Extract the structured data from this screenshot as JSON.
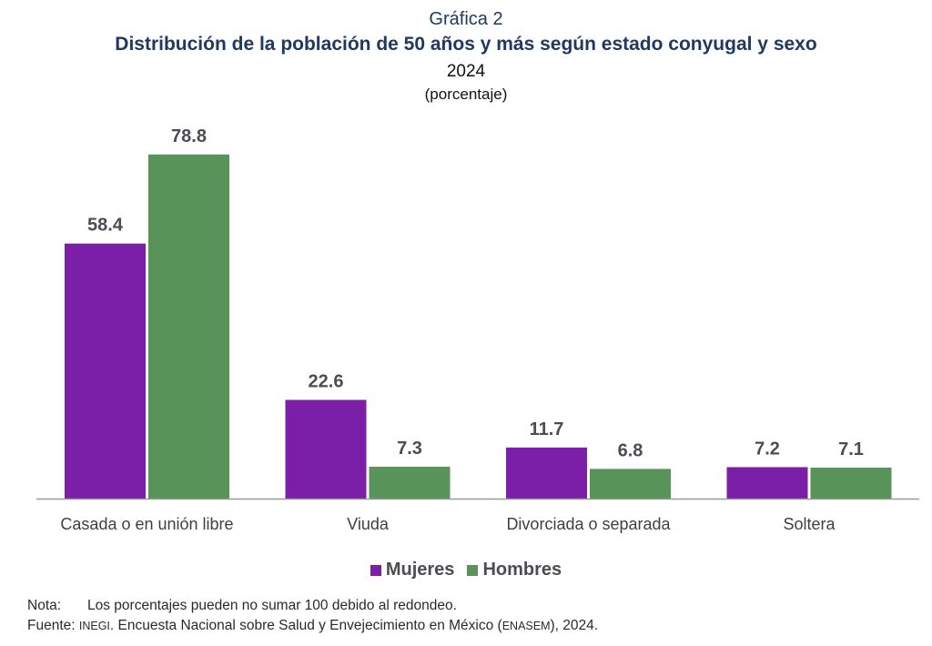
{
  "header": {
    "kicker": "Gráfica 2",
    "title": "Distribución de la población de 50 años y más según estado conyugal y sexo",
    "year": "2024",
    "unit": "(porcentaje)"
  },
  "chart_data": {
    "type": "bar",
    "title": "Distribución de la población de 50 años y más según estado conyugal y sexo",
    "subtitle": "2024 (porcentaje)",
    "xlabel": "",
    "ylabel": "",
    "categories": [
      "Casada o en unión libre",
      "Viuda",
      "Divorciada o separada",
      "Soltera"
    ],
    "series": [
      {
        "name": "Mujeres",
        "color": "#7b1fa8",
        "values": [
          58.4,
          22.6,
          11.7,
          7.2
        ],
        "labels": [
          "58.4",
          "22.6",
          "11.7",
          "7.2"
        ]
      },
      {
        "name": "Hombres",
        "color": "#58935a",
        "values": [
          78.8,
          7.3,
          6.8,
          7.1
        ],
        "labels": [
          "78.8",
          "7.3",
          "6.8",
          "7.1"
        ]
      }
    ],
    "ylim": [
      0,
      80
    ],
    "grid": false,
    "y_axis_visible": false,
    "data_labels": true,
    "legend_position": "bottom-center"
  },
  "notes": {
    "nota_label": "Nota:",
    "nota_text": "Los porcentajes pueden no sumar 100 debido al redondeo.",
    "fuente_label": "Fuente:",
    "fuente_org": "INEGI",
    "fuente_text_1": ". Encuesta Nacional sobre Salud y Envejecimiento en México (",
    "fuente_abbr": "ENASEM",
    "fuente_text_2": "), 2024."
  }
}
